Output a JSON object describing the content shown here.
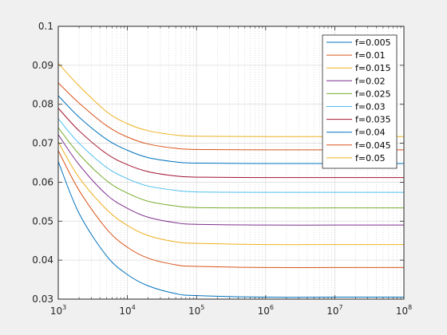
{
  "chart_data": {
    "type": "line",
    "title": "",
    "xlabel": "",
    "ylabel": "",
    "x_scale": "log",
    "xlim": [
      1000,
      100000000
    ],
    "ylim": [
      0.03,
      0.1
    ],
    "grid": {
      "major": true,
      "minor_x": true
    },
    "legend": {
      "placement": "top-right"
    },
    "x_ticks": [
      {
        "base": "10",
        "exp": "3",
        "value": 1000
      },
      {
        "base": "10",
        "exp": "4",
        "value": 10000
      },
      {
        "base": "10",
        "exp": "5",
        "value": 100000
      },
      {
        "base": "10",
        "exp": "6",
        "value": 1000000
      },
      {
        "base": "10",
        "exp": "7",
        "value": 10000000
      },
      {
        "base": "10",
        "exp": "8",
        "value": 100000000
      }
    ],
    "y_ticks": [
      {
        "label": "0.03",
        "value": 0.03
      },
      {
        "label": "0.04",
        "value": 0.04
      },
      {
        "label": "0.05",
        "value": 0.05
      },
      {
        "label": "0.06",
        "value": 0.06
      },
      {
        "label": "0.07",
        "value": 0.07
      },
      {
        "label": "0.08",
        "value": 0.08
      },
      {
        "label": "0.09",
        "value": 0.09
      },
      {
        "label": "0.1",
        "value": 0.1
      }
    ],
    "x": [
      1000,
      2000,
      5000,
      10000,
      20000,
      50000,
      100000,
      1000000,
      10000000,
      100000000
    ],
    "series": [
      {
        "name": "f=0.005",
        "color": "#0072BD",
        "values": [
          0.0653,
          0.052,
          0.0411,
          0.0363,
          0.0334,
          0.0314,
          0.0309,
          0.0305,
          0.0305,
          0.0305
        ]
      },
      {
        "name": "f=0.01",
        "color": "#D95319",
        "values": [
          0.0681,
          0.0579,
          0.048,
          0.0433,
          0.0405,
          0.0388,
          0.0384,
          0.0381,
          0.0381,
          0.0381
        ]
      },
      {
        "name": "f=0.015",
        "color": "#EDB120",
        "values": [
          0.0703,
          0.0612,
          0.053,
          0.0489,
          0.0463,
          0.0447,
          0.0443,
          0.044,
          0.044,
          0.044
        ]
      },
      {
        "name": "f=0.02",
        "color": "#7E2F8E",
        "values": [
          0.0722,
          0.0645,
          0.0568,
          0.0533,
          0.051,
          0.0496,
          0.0492,
          0.049,
          0.049,
          0.049
        ]
      },
      {
        "name": "f=0.025",
        "color": "#77AC30",
        "values": [
          0.074,
          0.0672,
          0.0604,
          0.0572,
          0.0551,
          0.0539,
          0.0535,
          0.0534,
          0.0534,
          0.0534
        ]
      },
      {
        "name": "f=0.03",
        "color": "#4DBEEE",
        "values": [
          0.0763,
          0.07,
          0.0638,
          0.0609,
          0.059,
          0.0579,
          0.0575,
          0.0574,
          0.0574,
          0.0574
        ]
      },
      {
        "name": "f=0.035",
        "color": "#A2142F",
        "values": [
          0.079,
          0.0732,
          0.0673,
          0.0645,
          0.0627,
          0.0616,
          0.0613,
          0.0612,
          0.0612,
          0.0612
        ]
      },
      {
        "name": "f=0.04",
        "color": "#0072BD",
        "values": [
          0.0822,
          0.0767,
          0.071,
          0.0682,
          0.0663,
          0.0652,
          0.0649,
          0.0648,
          0.0648,
          0.0648
        ]
      },
      {
        "name": "f=0.045",
        "color": "#D95319",
        "values": [
          0.0855,
          0.0803,
          0.0745,
          0.0716,
          0.0698,
          0.0687,
          0.0684,
          0.0683,
          0.0683,
          0.0683
        ]
      },
      {
        "name": "f=0.05",
        "color": "#EDB120",
        "values": [
          0.0905,
          0.0847,
          0.0781,
          0.075,
          0.0732,
          0.0721,
          0.0718,
          0.0717,
          0.0717,
          0.0717
        ]
      }
    ]
  }
}
